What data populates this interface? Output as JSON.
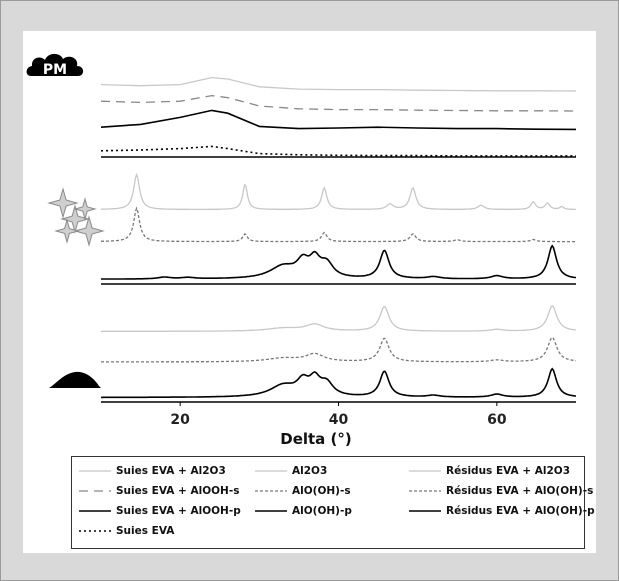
{
  "chart_data": {
    "type": "line",
    "xlabel": "Delta (°)",
    "xlim": [
      10,
      70
    ],
    "xticks": [
      20,
      40,
      60
    ],
    "groups": [
      {
        "marker": "PM",
        "icon": "pm-cloud-icon",
        "series": [
          {
            "name": "Suies EVA + Al2O3",
            "color": "#c8c8c8",
            "dash": "solid",
            "x": [
              10,
              15,
              20,
              24,
              26,
              30,
              35,
              40,
              45,
              50,
              55,
              60,
              65,
              70
            ],
            "y": [
              0.3,
              0.26,
              0.3,
              0.55,
              0.5,
              0.22,
              0.14,
              0.12,
              0.12,
              0.1,
              0.09,
              0.08,
              0.08,
              0.07
            ]
          },
          {
            "name": "Suies EVA + AlOOH-s",
            "color": "#888888",
            "dash": "long",
            "x": [
              10,
              15,
              20,
              24,
              26,
              30,
              35,
              40,
              45,
              50,
              55,
              60,
              65,
              70
            ],
            "y": [
              0.42,
              0.38,
              0.42,
              0.62,
              0.55,
              0.25,
              0.15,
              0.12,
              0.12,
              0.1,
              0.09,
              0.08,
              0.08,
              0.07
            ]
          },
          {
            "name": "Suies EVA + AlOOH-p",
            "color": "#000000",
            "dash": "solid",
            "x": [
              10,
              15,
              20,
              24,
              26,
              30,
              35,
              40,
              45,
              50,
              55,
              60,
              65,
              70
            ],
            "y": [
              0.35,
              0.45,
              0.7,
              0.95,
              0.85,
              0.38,
              0.3,
              0.32,
              0.35,
              0.32,
              0.3,
              0.3,
              0.28,
              0.27
            ]
          },
          {
            "name": "Suies EVA",
            "color": "#000000",
            "dash": "dot",
            "x": [
              10,
              15,
              20,
              24,
              26,
              30,
              35,
              40,
              45,
              50,
              55,
              60,
              65,
              70
            ],
            "y": [
              0.22,
              0.25,
              0.3,
              0.38,
              0.3,
              0.12,
              0.08,
              0.06,
              0.05,
              0.05,
              0.04,
              0.04,
              0.04,
              0.04
            ]
          }
        ]
      },
      {
        "marker": "",
        "icon": "crystal-sparkle-icon",
        "series": [
          {
            "name": "Al2O3",
            "color": "#c8c8c8",
            "dash": "solid",
            "peaks": [
              [
                14.5,
                1.0,
                0.45
              ],
              [
                28.2,
                0.72,
                0.35
              ],
              [
                38.2,
                0.62,
                0.4
              ],
              [
                46.5,
                0.15,
                0.5
              ],
              [
                49.4,
                0.62,
                0.45
              ],
              [
                58.0,
                0.12,
                0.5
              ],
              [
                64.6,
                0.22,
                0.35
              ],
              [
                66.4,
                0.18,
                0.35
              ],
              [
                68.2,
                0.08,
                0.3
              ]
            ],
            "base": 0.04
          },
          {
            "name": "AlO(OH)-s",
            "color": "#777777",
            "dash": "short",
            "peaks": [
              [
                14.5,
                0.95,
                0.45
              ],
              [
                28.2,
                0.22,
                0.35
              ],
              [
                38.2,
                0.26,
                0.4
              ],
              [
                49.4,
                0.22,
                0.45
              ],
              [
                55.0,
                0.05,
                0.5
              ],
              [
                64.6,
                0.06,
                0.4
              ]
            ],
            "base": 0.04
          },
          {
            "name": "AlO(OH)-p",
            "color": "#000000",
            "dash": "solid",
            "peaks": [
              [
                18.0,
                0.05,
                1.0
              ],
              [
                21.0,
                0.04,
                1.0
              ],
              [
                33.0,
                0.35,
                2.0
              ],
              [
                35.5,
                0.42,
                0.9
              ],
              [
                37.0,
                0.48,
                0.8
              ],
              [
                38.5,
                0.4,
                1.0
              ],
              [
                45.8,
                0.8,
                0.7
              ],
              [
                52.0,
                0.06,
                1.0
              ],
              [
                60.0,
                0.09,
                0.9
              ],
              [
                67.0,
                0.95,
                0.65
              ]
            ],
            "base": 0.05
          }
        ]
      },
      {
        "marker": "",
        "icon": "residue-pile-icon",
        "series": [
          {
            "name": "Résidus EVA + Al2O3",
            "color": "#c8c8c8",
            "dash": "solid",
            "peaks": [
              [
                33.0,
                0.1,
                2.5
              ],
              [
                37.0,
                0.22,
                1.4
              ],
              [
                45.8,
                0.82,
                0.7
              ],
              [
                60.0,
                0.06,
                1.0
              ],
              [
                67.0,
                0.85,
                0.7
              ]
            ],
            "base": 0.12
          },
          {
            "name": "Résidus EVA + AlO(OH)-s",
            "color": "#777777",
            "dash": "short",
            "peaks": [
              [
                33.0,
                0.12,
                2.5
              ],
              [
                37.0,
                0.25,
                1.4
              ],
              [
                45.8,
                0.78,
                0.7
              ],
              [
                60.0,
                0.06,
                1.0
              ],
              [
                67.0,
                0.82,
                0.7
              ]
            ],
            "base": 0.1
          },
          {
            "name": "Résidus EVA + AlO(OH)-p",
            "color": "#000000",
            "dash": "solid",
            "peaks": [
              [
                33.0,
                0.38,
                2.0
              ],
              [
                35.5,
                0.45,
                0.9
              ],
              [
                37.0,
                0.52,
                0.8
              ],
              [
                38.5,
                0.42,
                1.0
              ],
              [
                45.8,
                0.85,
                0.7
              ],
              [
                52.0,
                0.06,
                1.0
              ],
              [
                60.0,
                0.1,
                0.9
              ],
              [
                67.0,
                0.95,
                0.65
              ]
            ],
            "base": 0.05
          }
        ]
      }
    ]
  },
  "legend": {
    "columns": [
      [
        {
          "label": "Suies EVA + Al2O3",
          "color": "#c8c8c8",
          "dash": "solid"
        },
        {
          "label": "Suies EVA + AlOOH-s",
          "color": "#888888",
          "dash": "long"
        },
        {
          "label": "Suies EVA + AlOOH-p",
          "color": "#000000",
          "dash": "solid"
        },
        {
          "label": "Suies EVA",
          "color": "#000000",
          "dash": "dot"
        }
      ],
      [
        {
          "label": "Al2O3",
          "color": "#c8c8c8",
          "dash": "solid"
        },
        {
          "label": "AlO(OH)-s",
          "color": "#777777",
          "dash": "short"
        },
        {
          "label": "AlO(OH)-p",
          "color": "#000000",
          "dash": "solid"
        }
      ],
      [
        {
          "label": "Résidus EVA + Al2O3",
          "color": "#c8c8c8",
          "dash": "solid"
        },
        {
          "label": "Résidus EVA + AlO(OH)-s",
          "color": "#777777",
          "dash": "short"
        },
        {
          "label": "Résidus EVA + AlO(OH)-p",
          "color": "#000000",
          "dash": "solid"
        }
      ]
    ]
  }
}
